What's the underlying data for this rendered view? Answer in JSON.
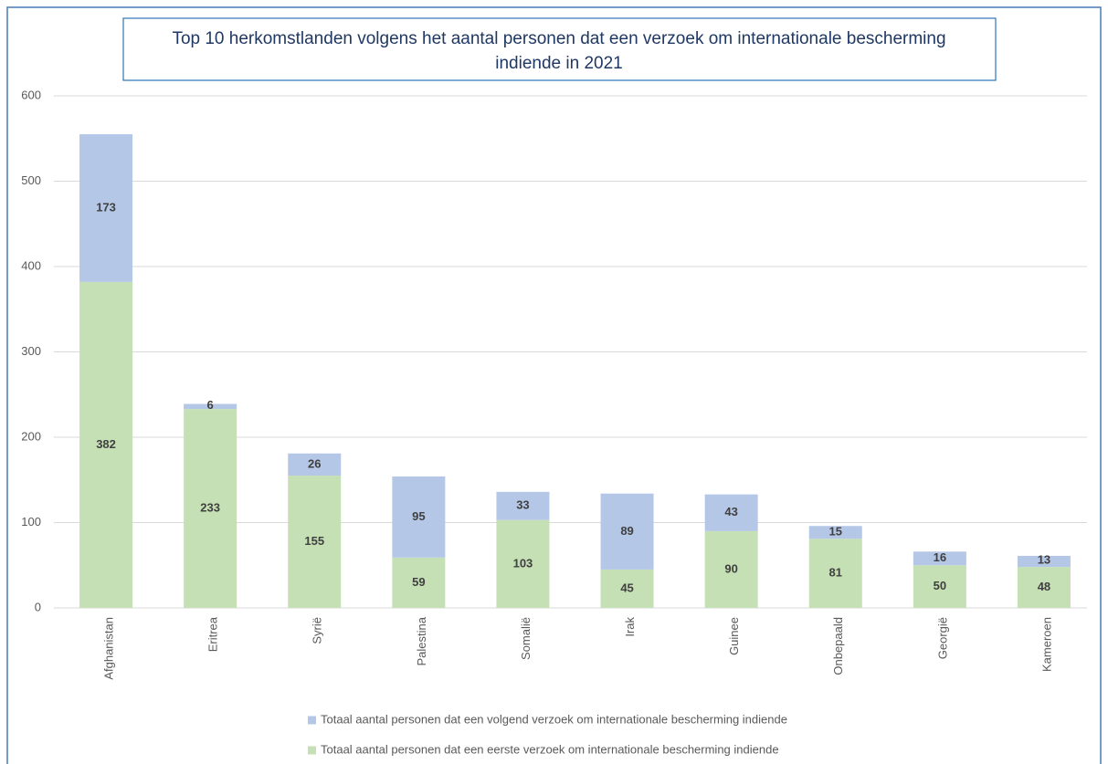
{
  "chart_data": {
    "type": "stacked_bar",
    "title": [
      "Top 10 herkomstlanden volgens het aantal personen dat een verzoek om internationale bescherming",
      "indiende in 2021"
    ],
    "categories": [
      "Afghanistan",
      "Eritrea",
      "Syrië",
      "Palestina",
      "Somalië",
      "Irak",
      "Guinee",
      "Onbepaald",
      "Georgië",
      "Kameroen"
    ],
    "series": [
      {
        "name": "Totaal aantal personen dat een eerste verzoek om internationale bescherming indiende",
        "color": "#c5e0b4",
        "values": [
          382,
          233,
          155,
          59,
          103,
          45,
          90,
          81,
          50,
          48
        ]
      },
      {
        "name": "Totaal aantal personen dat een volgend verzoek om internationale bescherming indiende",
        "color": "#b4c7e7",
        "values": [
          173,
          6,
          26,
          95,
          33,
          89,
          43,
          15,
          16,
          13
        ]
      }
    ],
    "ylim": [
      0,
      600
    ],
    "yticks": [
      0,
      100,
      200,
      300,
      400,
      500,
      600
    ],
    "grid": true
  }
}
